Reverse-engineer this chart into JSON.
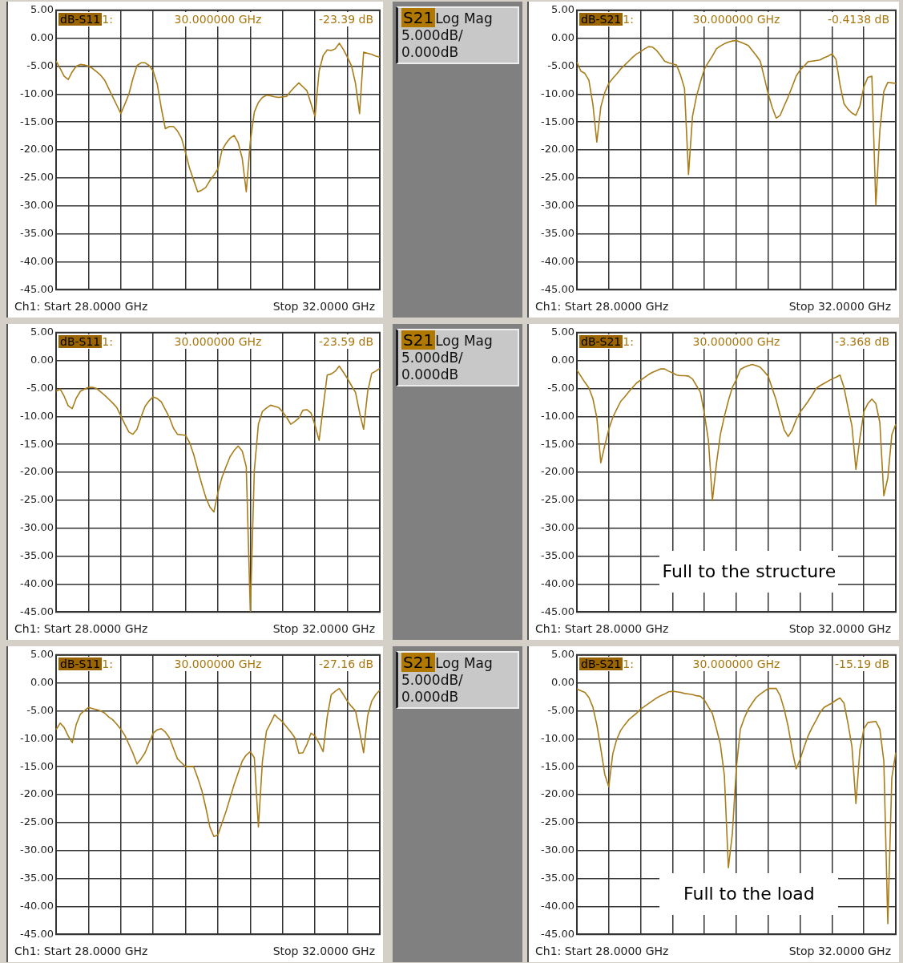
{
  "chart_data": [
    {
      "type": "line",
      "annotations": [
        "dB-S11",
        "1:",
        "30.000000 GHz",
        "-23.39 dB",
        "Ch1: Start 28.0000 GHz",
        "Stop 32.0000 GHz"
      ],
      "categories": [
        null,
        null,
        null,
        null,
        null,
        null,
        null,
        null,
        null,
        null,
        null,
        null,
        null,
        null,
        null,
        null,
        null,
        null,
        null,
        null,
        null,
        null,
        null,
        null,
        null,
        null,
        null,
        null,
        null,
        null,
        null,
        null,
        null,
        null,
        null,
        null,
        null,
        null,
        null,
        null,
        null,
        null,
        null,
        null,
        null,
        null,
        null,
        null,
        null,
        null,
        null,
        null,
        null,
        null,
        null,
        null,
        null,
        null,
        null,
        null,
        null,
        null,
        null,
        null,
        null,
        null,
        null,
        null,
        null,
        null,
        null,
        null,
        null,
        null,
        null,
        null,
        null,
        null,
        null,
        null,
        null
      ],
      "series": [
        {
          "color": "#a87d1a",
          "values": [
            -4.1,
            -5.4,
            -6.8,
            -7.4,
            -6.0,
            -5.0,
            -4.7,
            -4.8,
            -5.0,
            -5.4,
            -6.0,
            -6.6,
            -7.5,
            -9.0,
            -10.5,
            -12.0,
            -13.5,
            -11.8,
            -10.0,
            -7.2,
            -4.9,
            -4.4,
            -4.4,
            -4.9,
            -5.9,
            -8.2,
            -12.5,
            -16.2,
            -15.8,
            -15.8,
            -16.6,
            -17.9,
            -20.5,
            -23.3,
            -25.4,
            -27.5,
            -27.2,
            -26.7,
            -25.5,
            -24.5,
            -23.4,
            -20.1,
            -18.8,
            -17.9,
            -17.4,
            -18.7,
            -21.5,
            -27.5,
            -18.5,
            -13.2,
            -11.5,
            -10.6,
            -10.2,
            -10.3,
            -10.5,
            -10.6,
            -10.5,
            -10.4,
            -9.5,
            -8.7,
            -8.0,
            -8.7,
            -9.4,
            -11.7,
            -14.0,
            -5.9,
            -3.1,
            -2.1,
            -2.2,
            -1.9,
            -0.9,
            -2.0,
            -3.4,
            -4.9,
            -8.1,
            -13.5,
            -2.5,
            -2.7,
            -2.9,
            -3.2,
            -3.4
          ]
        }
      ],
      "ylim": [
        -45,
        5
      ],
      "yticks": [
        {
          "value": 5,
          "label": "5.00"
        },
        {
          "value": 0,
          "label": "0.00"
        },
        {
          "value": -5,
          "label": "-5.00"
        },
        {
          "value": -10,
          "label": "-10.00"
        },
        {
          "value": -15,
          "label": "-15.00"
        },
        {
          "value": -20,
          "label": "-20.00"
        },
        {
          "value": -25,
          "label": "-25.00"
        },
        {
          "value": -30,
          "label": "-30.00"
        },
        {
          "value": -35,
          "label": "-35.00"
        },
        {
          "value": -40,
          "label": "-40.00"
        },
        {
          "value": -45,
          "label": "-45.00"
        }
      ],
      "tick_labels": "y",
      "grid": true
    },
    {
      "type": "other",
      "annotations": [
        "S21",
        "Log Mag",
        "5.000dB/",
        "0.000dB"
      ]
    },
    {
      "type": "line",
      "annotations": [
        "dB-S21",
        "1:",
        "30.000000 GHz",
        "-0.4138 dB",
        "Ch1: Start 28.0000 GHz",
        "Stop 32.0000 GHz"
      ],
      "categories": [
        null,
        null,
        null,
        null,
        null,
        null,
        null,
        null,
        null,
        null,
        null,
        null,
        null,
        null,
        null,
        null,
        null,
        null,
        null,
        null,
        null,
        null,
        null,
        null,
        null,
        null,
        null,
        null,
        null,
        null,
        null,
        null,
        null,
        null,
        null,
        null,
        null,
        null,
        null,
        null,
        null,
        null,
        null,
        null,
        null,
        null,
        null,
        null,
        null,
        null,
        null,
        null,
        null,
        null,
        null,
        null,
        null,
        null,
        null,
        null,
        null,
        null,
        null,
        null,
        null,
        null,
        null,
        null,
        null,
        null,
        null,
        null,
        null,
        null,
        null,
        null,
        null,
        null,
        null,
        null,
        null
      ],
      "series": [
        {
          "color": "#a87d1a",
          "values": [
            -4.3,
            -5.9,
            -6.3,
            -7.5,
            -11.8,
            -18.6,
            -12.3,
            -9.7,
            -8.1,
            -7.2,
            -6.4,
            -5.5,
            -4.8,
            -4.1,
            -3.4,
            -2.8,
            -2.4,
            -1.9,
            -1.5,
            -1.6,
            -2.2,
            -3.1,
            -4.1,
            -4.4,
            -4.6,
            -4.8,
            -6.6,
            -9.0,
            -24.4,
            -14.0,
            -10.4,
            -7.8,
            -5.5,
            -4.3,
            -3.2,
            -1.9,
            -1.4,
            -1.0,
            -0.7,
            -0.5,
            -0.4,
            -0.7,
            -1.0,
            -1.3,
            -2.2,
            -3.1,
            -4.1,
            -7.0,
            -10.0,
            -12.4,
            -14.3,
            -13.8,
            -12.1,
            -10.5,
            -8.7,
            -6.8,
            -5.7,
            -5.0,
            -4.2,
            -4.1,
            -4.0,
            -3.9,
            -3.5,
            -3.2,
            -2.8,
            -3.8,
            -8.3,
            -11.7,
            -12.7,
            -13.4,
            -13.8,
            -12.1,
            -8.7,
            -7.0,
            -6.8,
            -29.9,
            -16.5,
            -9.5,
            -7.9,
            -8.0,
            -8.1
          ]
        }
      ],
      "ylim": [
        -45,
        5
      ],
      "yticks": [
        {
          "value": 5,
          "label": "5.00"
        },
        {
          "value": 0,
          "label": "0.00"
        },
        {
          "value": -5,
          "label": "-5.00"
        },
        {
          "value": -10,
          "label": "-10.00"
        },
        {
          "value": -15,
          "label": "-15.00"
        },
        {
          "value": -20,
          "label": "-20.00"
        },
        {
          "value": -25,
          "label": "-25.00"
        },
        {
          "value": -30,
          "label": "-30.00"
        },
        {
          "value": -35,
          "label": "-35.00"
        },
        {
          "value": -40,
          "label": "-40.00"
        },
        {
          "value": -45,
          "label": "-45.00"
        }
      ],
      "tick_labels": "y",
      "grid": true
    },
    {
      "type": "line",
      "annotations": [
        "dB-S11",
        "1:",
        "30.000000 GHz",
        "-23.59 dB",
        "Ch1: Start 28.0000 GHz",
        "Stop 32.0000 GHz"
      ],
      "categories": [
        null,
        null,
        null,
        null,
        null,
        null,
        null,
        null,
        null,
        null,
        null,
        null,
        null,
        null,
        null,
        null,
        null,
        null,
        null,
        null,
        null,
        null,
        null,
        null,
        null,
        null,
        null,
        null,
        null,
        null,
        null,
        null,
        null,
        null,
        null,
        null,
        null,
        null,
        null,
        null,
        null,
        null,
        null,
        null,
        null,
        null,
        null,
        null,
        null,
        null,
        null,
        null,
        null,
        null,
        null,
        null,
        null,
        null,
        null,
        null,
        null,
        null,
        null,
        null,
        null,
        null,
        null,
        null,
        null,
        null,
        null,
        null,
        null,
        null,
        null,
        null,
        null,
        null,
        null,
        null,
        null
      ],
      "series": [
        {
          "color": "#a87d1a",
          "values": [
            -5.5,
            -5.1,
            -6.4,
            -8.1,
            -8.6,
            -6.7,
            -5.5,
            -5.1,
            -4.8,
            -4.8,
            -5.0,
            -5.6,
            -6.2,
            -6.9,
            -7.6,
            -8.4,
            -9.9,
            -11.4,
            -12.8,
            -13.2,
            -12.3,
            -10.1,
            -8.2,
            -7.2,
            -6.5,
            -6.8,
            -7.4,
            -8.8,
            -10.2,
            -12.1,
            -13.2,
            -13.3,
            -13.4,
            -14.7,
            -16.8,
            -19.5,
            -22.1,
            -24.5,
            -26.2,
            -27.1,
            -23.6,
            -20.9,
            -19.0,
            -17.2,
            -16.1,
            -15.3,
            -16.2,
            -19.0,
            -44.9,
            -19.6,
            -11.4,
            -9.1,
            -8.5,
            -8.0,
            -8.2,
            -8.4,
            -9.2,
            -10.2,
            -11.4,
            -10.9,
            -10.3,
            -8.9,
            -8.8,
            -9.4,
            -11.6,
            -14.3,
            -8.4,
            -2.6,
            -2.4,
            -1.9,
            -1.0,
            -2.1,
            -3.2,
            -4.5,
            -5.7,
            -9.3,
            -12.3,
            -5.6,
            -2.3,
            -1.9,
            -1.4
          ]
        }
      ],
      "ylim": [
        -45,
        5
      ],
      "yticks": [
        {
          "value": 5,
          "label": "5.00"
        },
        {
          "value": 0,
          "label": "0.00"
        },
        {
          "value": -5,
          "label": "-5.00"
        },
        {
          "value": -10,
          "label": "-10.00"
        },
        {
          "value": -15,
          "label": "-15.00"
        },
        {
          "value": -20,
          "label": "-20.00"
        },
        {
          "value": -25,
          "label": "-25.00"
        },
        {
          "value": -30,
          "label": "-30.00"
        },
        {
          "value": -35,
          "label": "-35.00"
        },
        {
          "value": -40,
          "label": "-40.00"
        },
        {
          "value": -45,
          "label": "-45.00"
        }
      ],
      "tick_labels": "y",
      "grid": true
    },
    {
      "type": "other",
      "annotations": [
        "S21",
        "Log Mag",
        "5.000dB/",
        "0.000dB"
      ]
    },
    {
      "type": "line",
      "annotations": [
        "dB-S21",
        "1:",
        "30.000000 GHz",
        "-3.368 dB",
        "Ch1: Start 28.0000 GHz",
        "Stop 32.0000 GHz",
        "Full to the structure"
      ],
      "categories": [
        null,
        null,
        null,
        null,
        null,
        null,
        null,
        null,
        null,
        null,
        null,
        null,
        null,
        null,
        null,
        null,
        null,
        null,
        null,
        null,
        null,
        null,
        null,
        null,
        null,
        null,
        null,
        null,
        null,
        null,
        null,
        null,
        null,
        null,
        null,
        null,
        null,
        null,
        null,
        null,
        null,
        null,
        null,
        null,
        null,
        null,
        null,
        null,
        null,
        null,
        null,
        null,
        null,
        null,
        null,
        null,
        null,
        null,
        null,
        null,
        null,
        null,
        null,
        null,
        null,
        null,
        null,
        null,
        null,
        null,
        null,
        null,
        null,
        null,
        null,
        null,
        null,
        null,
        null,
        null,
        null
      ],
      "series": [
        {
          "color": "#a87d1a",
          "values": [
            -1.7,
            -2.8,
            -3.9,
            -4.9,
            -6.8,
            -10.2,
            -18.3,
            -15.2,
            -12.3,
            -10.2,
            -8.7,
            -7.3,
            -6.5,
            -5.6,
            -4.8,
            -4.0,
            -3.5,
            -3.0,
            -2.5,
            -2.1,
            -1.8,
            -1.5,
            -1.5,
            -1.9,
            -2.2,
            -2.6,
            -2.7,
            -2.7,
            -2.8,
            -3.3,
            -4.5,
            -5.7,
            -9.6,
            -14.3,
            -25.1,
            -18.5,
            -13.2,
            -10.0,
            -7.2,
            -4.8,
            -3.4,
            -1.6,
            -1.2,
            -0.9,
            -0.7,
            -0.9,
            -1.2,
            -2.0,
            -2.8,
            -5.0,
            -7.1,
            -9.8,
            -12.4,
            -13.6,
            -12.5,
            -10.6,
            -9.2,
            -8.3,
            -7.3,
            -6.2,
            -5.0,
            -4.5,
            -4.1,
            -3.7,
            -3.3,
            -3.0,
            -2.6,
            -4.8,
            -8.4,
            -11.7,
            -19.5,
            -13.9,
            -9.1,
            -7.7,
            -6.9,
            -7.7,
            -11.1,
            -24.2,
            -21.0,
            -13.3,
            -11.4
          ]
        }
      ],
      "ylim": [
        -45,
        5
      ],
      "yticks": [
        {
          "value": 5,
          "label": "5.00"
        },
        {
          "value": 0,
          "label": "0.00"
        },
        {
          "value": -5,
          "label": "-5.00"
        },
        {
          "value": -10,
          "label": "-10.00"
        },
        {
          "value": -15,
          "label": "-15.00"
        },
        {
          "value": -20,
          "label": "-20.00"
        },
        {
          "value": -25,
          "label": "-25.00"
        },
        {
          "value": -30,
          "label": "-30.00"
        },
        {
          "value": -35,
          "label": "-35.00"
        },
        {
          "value": -40,
          "label": "-40.00"
        },
        {
          "value": -45,
          "label": "-45.00"
        }
      ],
      "tick_labels": "y",
      "grid": true
    },
    {
      "type": "line",
      "annotations": [
        "dB-S11",
        "1:",
        "30.000000 GHz",
        "-27.16 dB",
        "Ch1: Start 28.0000 GHz",
        "Stop 32.0000 GHz"
      ],
      "categories": [
        null,
        null,
        null,
        null,
        null,
        null,
        null,
        null,
        null,
        null,
        null,
        null,
        null,
        null,
        null,
        null,
        null,
        null,
        null,
        null,
        null,
        null,
        null,
        null,
        null,
        null,
        null,
        null,
        null,
        null,
        null,
        null,
        null,
        null,
        null,
        null,
        null,
        null,
        null,
        null,
        null,
        null,
        null,
        null,
        null,
        null,
        null,
        null,
        null,
        null,
        null,
        null,
        null,
        null,
        null,
        null,
        null,
        null,
        null,
        null,
        null,
        null,
        null,
        null,
        null,
        null,
        null,
        null,
        null,
        null,
        null,
        null,
        null,
        null,
        null,
        null,
        null,
        null,
        null,
        null,
        null
      ],
      "series": [
        {
          "color": "#a87d1a",
          "values": [
            -8.4,
            -7.2,
            -8.0,
            -9.5,
            -10.7,
            -7.4,
            -5.6,
            -5.0,
            -4.4,
            -4.6,
            -4.8,
            -5.0,
            -5.4,
            -6.1,
            -6.6,
            -7.4,
            -8.3,
            -9.4,
            -11.0,
            -12.6,
            -14.5,
            -13.6,
            -12.5,
            -10.7,
            -9.0,
            -8.4,
            -8.2,
            -8.8,
            -9.8,
            -11.7,
            -13.6,
            -14.3,
            -15.0,
            -15.0,
            -15.0,
            -17.0,
            -19.2,
            -22.3,
            -25.8,
            -27.5,
            -27.2,
            -25.1,
            -23.0,
            -20.6,
            -18.2,
            -16.1,
            -14.0,
            -12.9,
            -12.3,
            -13.4,
            -25.8,
            -14.0,
            -8.6,
            -7.2,
            -5.7,
            -6.4,
            -7.0,
            -7.9,
            -8.8,
            -9.8,
            -12.6,
            -12.5,
            -11.0,
            -9.0,
            -9.5,
            -10.8,
            -12.3,
            -6.1,
            -2.1,
            -1.5,
            -1.0,
            -2.1,
            -3.3,
            -4.2,
            -5.0,
            -8.6,
            -12.5,
            -5.9,
            -3.3,
            -2.1,
            -1.3
          ]
        }
      ],
      "ylim": [
        -45,
        5
      ],
      "yticks": [
        {
          "value": 5,
          "label": "5.00"
        },
        {
          "value": 0,
          "label": "0.00"
        },
        {
          "value": -5,
          "label": "-5.00"
        },
        {
          "value": -10,
          "label": "-10.00"
        },
        {
          "value": -15,
          "label": "-15.00"
        },
        {
          "value": -20,
          "label": "-20.00"
        },
        {
          "value": -25,
          "label": "-25.00"
        },
        {
          "value": -30,
          "label": "-30.00"
        },
        {
          "value": -35,
          "label": "-35.00"
        },
        {
          "value": -40,
          "label": "-40.00"
        },
        {
          "value": -45,
          "label": "-45.00"
        }
      ],
      "tick_labels": "y",
      "grid": true
    },
    {
      "type": "other",
      "annotations": [
        "S21",
        "Log Mag",
        "5.000dB/",
        "0.000dB"
      ]
    },
    {
      "type": "line",
      "annotations": [
        "dB-S21",
        "1:",
        "30.000000 GHz",
        "-15.19 dB",
        "Ch1: Start 28.0000 GHz",
        "Stop 32.0000 GHz",
        "Full to the load"
      ],
      "categories": [
        null,
        null,
        null,
        null,
        null,
        null,
        null,
        null,
        null,
        null,
        null,
        null,
        null,
        null,
        null,
        null,
        null,
        null,
        null,
        null,
        null,
        null,
        null,
        null,
        null,
        null,
        null,
        null,
        null,
        null,
        null,
        null,
        null,
        null,
        null,
        null,
        null,
        null,
        null,
        null,
        null,
        null,
        null,
        null,
        null,
        null,
        null,
        null,
        null,
        null,
        null,
        null,
        null,
        null,
        null,
        null,
        null,
        null,
        null,
        null,
        null,
        null,
        null,
        null,
        null,
        null,
        null,
        null,
        null,
        null,
        null,
        null,
        null,
        null,
        null,
        null,
        null,
        null,
        null,
        null,
        null
      ],
      "series": [
        {
          "color": "#a87d1a",
          "values": [
            -1.1,
            -1.4,
            -1.7,
            -2.6,
            -4.3,
            -7.5,
            -11.8,
            -16.4,
            -18.6,
            -12.7,
            -10.1,
            -8.5,
            -7.5,
            -6.6,
            -6.0,
            -5.4,
            -4.7,
            -4.2,
            -3.7,
            -3.2,
            -2.7,
            -2.3,
            -2.0,
            -1.6,
            -1.5,
            -1.6,
            -1.7,
            -1.9,
            -2.0,
            -2.1,
            -2.3,
            -2.4,
            -3.1,
            -4.3,
            -5.5,
            -8.2,
            -11.0,
            -16.6,
            -33.1,
            -27.0,
            -15.2,
            -8.3,
            -6.3,
            -4.7,
            -3.6,
            -2.6,
            -2.0,
            -1.5,
            -1.0,
            -1.0,
            -1.0,
            -2.3,
            -4.7,
            -7.8,
            -12.0,
            -15.4,
            -13.7,
            -11.5,
            -9.5,
            -8.0,
            -6.7,
            -5.3,
            -4.4,
            -4.0,
            -3.6,
            -3.1,
            -2.7,
            -3.6,
            -7.2,
            -11.4,
            -21.6,
            -11.9,
            -8.2,
            -7.1,
            -7.0,
            -6.9,
            -8.3,
            -14.0,
            -43.1,
            -17.0,
            -12.5
          ]
        }
      ],
      "ylim": [
        -45,
        5
      ],
      "yticks": [
        {
          "value": 5,
          "label": "5.00"
        },
        {
          "value": 0,
          "label": "0.00"
        },
        {
          "value": -5,
          "label": "-5.00"
        },
        {
          "value": -10,
          "label": "-10.00"
        },
        {
          "value": -15,
          "label": "-15.00"
        },
        {
          "value": -20,
          "label": "-20.00"
        },
        {
          "value": -25,
          "label": "-25.00"
        },
        {
          "value": -30,
          "label": "-30.00"
        },
        {
          "value": -35,
          "label": "-35.00"
        },
        {
          "value": -40,
          "label": "-40.00"
        },
        {
          "value": -45,
          "label": "-45.00"
        }
      ],
      "tick_labels": "y",
      "grid": true
    }
  ]
}
